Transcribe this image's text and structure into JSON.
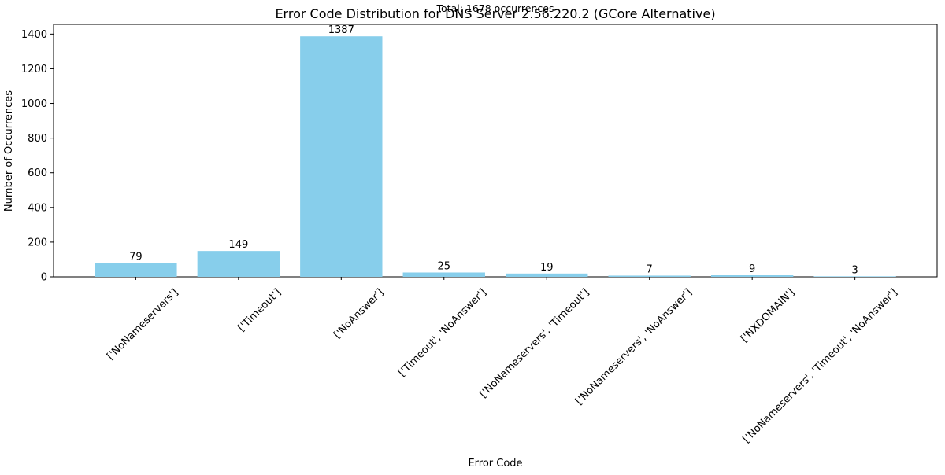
{
  "chart_data": {
    "type": "bar",
    "title": "Error Code Distribution for DNS Server 2.56.220.2 (GCore Alternative)",
    "subtitle": "Total: 1678 occurrences",
    "xlabel": "Error Code",
    "ylabel": "Number of Occurrences",
    "categories": [
      "['NoNameservers']",
      "['Timeout']",
      "['NoAnswer']",
      "['Timeout', 'NoAnswer']",
      "['NoNameservers', 'Timeout']",
      "['NoNameservers', 'NoAnswer']",
      "['NXDOMAIN']",
      "['NoNameservers', 'Timeout', 'NoAnswer']"
    ],
    "values": [
      79,
      149,
      1387,
      25,
      19,
      7,
      9,
      3
    ],
    "ylim": [
      0,
      1456
    ],
    "yticks": [
      0,
      200,
      400,
      600,
      800,
      1000,
      1200,
      1400
    ],
    "bar_color": "#87ceeb",
    "grid": false,
    "legend": "none",
    "data_labels": true
  }
}
